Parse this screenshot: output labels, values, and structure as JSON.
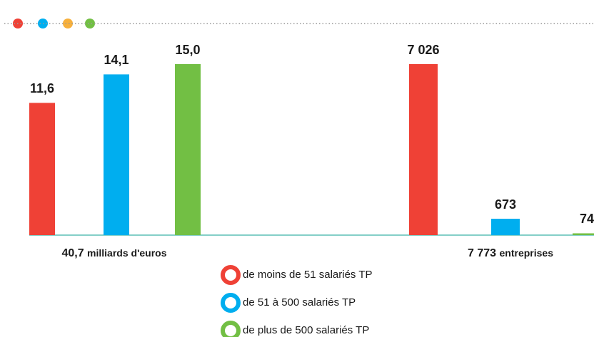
{
  "chart_data": [
    {
      "type": "bar",
      "values": [
        11.6,
        14.1,
        15.0
      ],
      "value_labels": [
        "11,6",
        "14,1",
        "15,0"
      ],
      "total": "40,7",
      "unit": "milliards d'euros"
    },
    {
      "type": "bar",
      "values": [
        7026,
        673,
        74
      ],
      "value_labels": [
        "7 026",
        "673",
        "74"
      ],
      "total": "7 773",
      "unit": "entreprises"
    }
  ],
  "legend": [
    {
      "name": "de moins de 51 salariés TP",
      "color": "#ef4136"
    },
    {
      "name": "de 51 à 500 salariés TP",
      "color": "#00aeef"
    },
    {
      "name": "de plus de 500 salariés TP",
      "color": "#72bf44"
    }
  ]
}
